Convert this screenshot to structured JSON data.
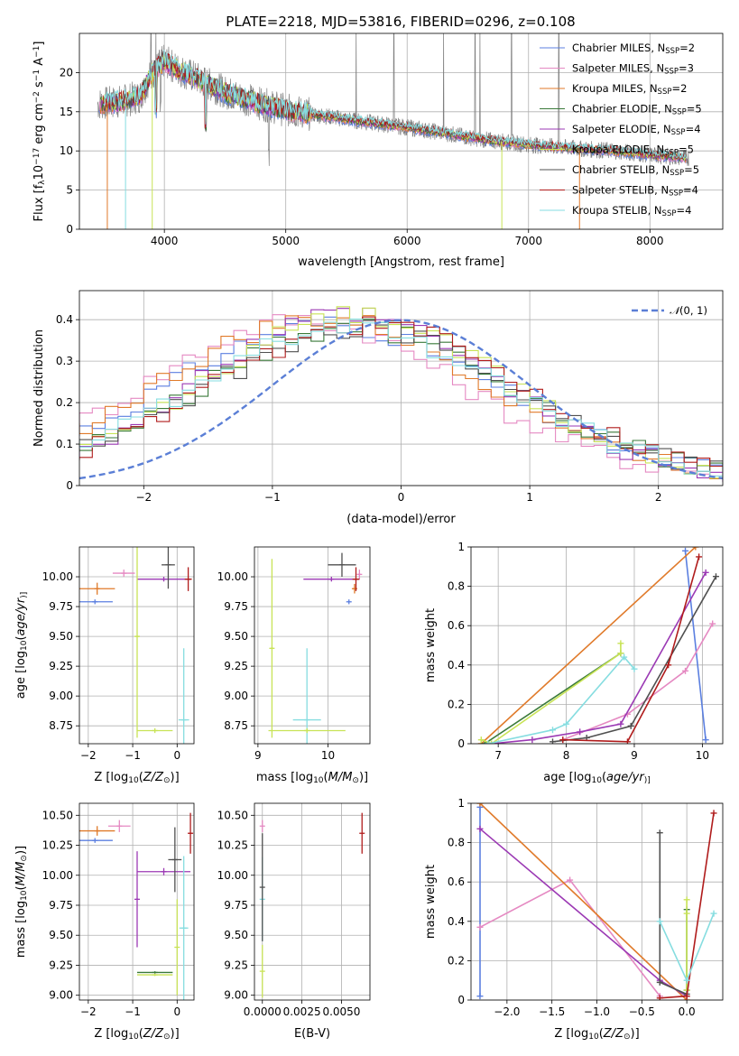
{
  "figure_title": "PLATE=2218, MJD=53816, FIBERID=0296, z=0.108",
  "colors": {
    "chabrier_miles": "#5b7fe0",
    "salpeter_miles": "#e589c2",
    "kroupa_miles": "#e07a2a",
    "chabrier_elodie": "#3a7a3a",
    "salpeter_elodie": "#9b39b4",
    "kroupa_elodie": "#c8e356",
    "chabrier_stelib": "#505050",
    "salpeter_stelib": "#b01c1c",
    "kroupa_stelib": "#86dde0",
    "data_gray": "#808080",
    "normal_curve": "#5b7fd6"
  },
  "legend_spectrum": [
    {
      "prefix": "Chabrier MILES, N",
      "sub": "SSP",
      "suffix": "=2",
      "color_key": "chabrier_miles"
    },
    {
      "prefix": "Salpeter MILES, N",
      "sub": "SSP",
      "suffix": "=3",
      "color_key": "salpeter_miles"
    },
    {
      "prefix": "Kroupa MILES, N",
      "sub": "SSP",
      "suffix": "=2",
      "color_key": "kroupa_miles"
    },
    {
      "prefix": "Chabrier ELODIE, N",
      "sub": "SSP",
      "suffix": "=5",
      "color_key": "chabrier_elodie"
    },
    {
      "prefix": "Salpeter ELODIE, N",
      "sub": "SSP",
      "suffix": "=4",
      "color_key": "salpeter_elodie"
    },
    {
      "prefix": "Kroupa ELODIE, N",
      "sub": "SSP",
      "suffix": "=5",
      "color_key": "kroupa_elodie"
    },
    {
      "prefix": "Chabrier STELIB, N",
      "sub": "SSP",
      "suffix": "=5",
      "color_key": "chabrier_stelib"
    },
    {
      "prefix": "Salpeter STELIB, N",
      "sub": "SSP",
      "suffix": "=4",
      "color_key": "salpeter_stelib"
    },
    {
      "prefix": "Kroupa STELIB, N",
      "sub": "SSP",
      "suffix": "=4",
      "color_key": "kroupa_stelib"
    }
  ],
  "chart_data": [
    {
      "id": "spectrum",
      "type": "line",
      "xlabel": "wavelength [Angstrom, rest frame]",
      "ylabel_parts": [
        "Flux [f",
        "λ",
        "10",
        "−17",
        " erg cm",
        "−2",
        " s",
        "−1",
        " A",
        "−1",
        "]"
      ],
      "xlim": [
        3300,
        8600
      ],
      "ylim": [
        0,
        25
      ],
      "xticks": [
        4000,
        5000,
        6000,
        7000,
        8000
      ],
      "yticks": [
        0,
        5,
        10,
        15,
        20
      ],
      "continuum": [
        [
          3450,
          16
        ],
        [
          3600,
          16.2
        ],
        [
          3700,
          16.5
        ],
        [
          3800,
          17
        ],
        [
          3900,
          20
        ],
        [
          4000,
          21.5
        ],
        [
          4100,
          20.5
        ],
        [
          4300,
          19
        ],
        [
          4500,
          17.5
        ],
        [
          4800,
          16
        ],
        [
          5000,
          15.2
        ],
        [
          5300,
          14.5
        ],
        [
          5600,
          13.8
        ],
        [
          6000,
          13
        ],
        [
          6300,
          12.3
        ],
        [
          6600,
          11.5
        ],
        [
          7000,
          10.8
        ],
        [
          7400,
          10.3
        ],
        [
          7700,
          10
        ],
        [
          8000,
          9.5
        ],
        [
          8300,
          9.1
        ]
      ],
      "model_dropouts_x": [
        3680,
        3900,
        3530,
        6780,
        7420
      ],
      "sky_spikes_x": [
        3890,
        3930,
        5580,
        5890,
        6300,
        6560,
        6600,
        6860,
        7250
      ]
    },
    {
      "id": "residual_hist",
      "type": "histogram",
      "xlabel": "(data-model)/error",
      "ylabel": "Normed distribution",
      "xlim": [
        -2.5,
        2.5
      ],
      "ylim": [
        0,
        0.47
      ],
      "xticks": [
        -2,
        -1,
        0,
        1,
        2
      ],
      "yticks": [
        0.0,
        0.1,
        0.2,
        0.3,
        0.4
      ],
      "bin_width": 0.1,
      "normal_label_parts": [
        "𝒩",
        "(0, 1)"
      ],
      "series": [
        {
          "color_key": "chabrier_miles",
          "mu": -0.55,
          "sigma": 1.05,
          "peak": 0.37
        },
        {
          "color_key": "salpeter_miles",
          "mu": -0.75,
          "sigma": 1.0,
          "peak": 0.38
        },
        {
          "color_key": "kroupa_miles",
          "mu": -0.6,
          "sigma": 1.05,
          "peak": 0.38
        },
        {
          "color_key": "chabrier_elodie",
          "mu": -0.35,
          "sigma": 1.0,
          "peak": 0.36
        },
        {
          "color_key": "salpeter_elodie",
          "mu": -0.4,
          "sigma": 0.95,
          "peak": 0.39
        },
        {
          "color_key": "kroupa_elodie",
          "mu": -0.35,
          "sigma": 0.95,
          "peak": 0.39
        },
        {
          "color_key": "chabrier_stelib",
          "mu": -0.3,
          "sigma": 1.0,
          "peak": 0.36
        },
        {
          "color_key": "salpeter_stelib",
          "mu": -0.25,
          "sigma": 1.0,
          "peak": 0.37
        },
        {
          "color_key": "kroupa_stelib",
          "mu": -0.4,
          "sigma": 1.0,
          "peak": 0.36
        }
      ]
    },
    {
      "id": "age_vs_Z",
      "type": "errorbar",
      "xlabel_parts": [
        "Z [log",
        "10",
        "(",
        "Z/Z",
        "⊙",
        ")]"
      ],
      "ylabel_parts": [
        "age  [log",
        "10",
        "(",
        "age/yr",
        ")]"
      ],
      "xlim": [
        -2.2,
        0.38
      ],
      "ylim": [
        8.6,
        10.25
      ],
      "xticks": [
        -2,
        -1,
        0
      ],
      "yticks": [
        8.75,
        9.0,
        9.25,
        9.5,
        9.75,
        10.0
      ],
      "ytick_labels": [
        "8.75",
        "9.00",
        "9.25",
        "9.50",
        "9.75",
        "10.00"
      ],
      "points": [
        {
          "color_key": "chabrier_miles",
          "x": -1.85,
          "y": 9.79,
          "xerr": 0.4,
          "yerr": 0.02
        },
        {
          "color_key": "kroupa_miles",
          "x": -1.8,
          "y": 9.9,
          "xerr": 0.4,
          "yerr": 0.05
        },
        {
          "color_key": "salpeter_miles",
          "x": -1.2,
          "y": 10.03,
          "xerr": 0.25,
          "yerr": 0.03
        },
        {
          "color_key": "salpeter_elodie",
          "x": -0.3,
          "y": 9.98,
          "xerr": 0.6,
          "yerr": 0.02
        },
        {
          "color_key": "kroupa_elodie",
          "x": -0.9,
          "y": 9.5,
          "xerr": 0.05,
          "yerr": 0.85
        },
        {
          "color_key": "chabrier_stelib",
          "x": -0.2,
          "y": 10.1,
          "xerr": 0.15,
          "yerr": 0.2
        },
        {
          "color_key": "salpeter_stelib",
          "x": 0.25,
          "y": 9.98,
          "xerr": 0.08,
          "yerr": 0.1
        },
        {
          "color_key": "kroupa_stelib",
          "x": 0.15,
          "y": 8.8,
          "xerr": 0.12,
          "yerr": 0.6
        },
        {
          "color_key": "kroupa_elodie",
          "x": -0.5,
          "y": 8.71,
          "xerr": 0.4,
          "yerr": 0.02
        }
      ]
    },
    {
      "id": "age_vs_mass",
      "type": "errorbar",
      "xlabel_parts": [
        "mass [log",
        "10",
        "(",
        "M/M",
        "⊙",
        ")]"
      ],
      "ylabel_parts": [],
      "xlim": [
        8.95,
        10.6
      ],
      "ylim": [
        8.6,
        10.25
      ],
      "xticks": [
        9,
        10
      ],
      "yticks": [
        8.75,
        9.0,
        9.25,
        9.5,
        9.75,
        10.0
      ],
      "ytick_labels": [
        "8.75",
        "9.00",
        "9.25",
        "9.50",
        "9.75",
        "10.00"
      ],
      "points": [
        {
          "color_key": "chabrier_miles",
          "x": 10.3,
          "y": 9.79,
          "xerr": 0.01,
          "yerr": 0.02
        },
        {
          "color_key": "kroupa_miles",
          "x": 10.38,
          "y": 9.9,
          "xerr": 0.02,
          "yerr": 0.04
        },
        {
          "color_key": "salpeter_miles",
          "x": 10.45,
          "y": 10.02,
          "xerr": 0.02,
          "yerr": 0.04
        },
        {
          "color_key": "salpeter_elodie",
          "x": 10.05,
          "y": 9.98,
          "xerr": 0.4,
          "yerr": 0.02
        },
        {
          "color_key": "kroupa_elodie",
          "x": 9.2,
          "y": 9.4,
          "xerr": 0.02,
          "yerr": 0.75
        },
        {
          "color_key": "chabrier_stelib",
          "x": 10.2,
          "y": 10.1,
          "xerr": 0.2,
          "yerr": 0.1
        },
        {
          "color_key": "salpeter_stelib",
          "x": 10.4,
          "y": 9.98,
          "xerr": 0.05,
          "yerr": 0.1
        },
        {
          "color_key": "kroupa_stelib",
          "x": 9.7,
          "y": 8.8,
          "xerr": 0.2,
          "yerr": 0.6
        },
        {
          "color_key": "kroupa_elodie",
          "x": 9.7,
          "y": 8.71,
          "xerr": 0.55,
          "yerr": 0.02
        }
      ]
    },
    {
      "id": "weight_vs_age",
      "type": "line",
      "xlabel_parts": [
        "age  [log",
        "10",
        "(",
        "age/yr",
        ")]"
      ],
      "ylabel": "mass weight",
      "xlim": [
        6.6,
        10.3
      ],
      "ylim": [
        0,
        1.0
      ],
      "xticks": [
        7,
        8,
        9,
        10
      ],
      "yticks": [
        0.0,
        0.2,
        0.4,
        0.6,
        0.8,
        1.0
      ],
      "series": [
        {
          "color_key": "chabrier_miles",
          "points": [
            [
              9.75,
              0.98
            ],
            [
              10.05,
              0.02
            ]
          ]
        },
        {
          "color_key": "salpeter_miles",
          "points": [
            [
              7.95,
              0.02
            ],
            [
              8.9,
              0.15
            ],
            [
              9.75,
              0.37
            ],
            [
              10.15,
              0.61
            ]
          ]
        },
        {
          "color_key": "kroupa_miles",
          "points": [
            [
              6.75,
              0.0
            ],
            [
              9.9,
              1.0
            ]
          ]
        },
        {
          "color_key": "chabrier_elodie",
          "points": [
            [
              6.8,
              0.0
            ],
            [
              8.8,
              0.46
            ]
          ]
        },
        {
          "color_key": "salpeter_elodie",
          "points": [
            [
              6.9,
              0.0
            ],
            [
              7.5,
              0.02
            ],
            [
              8.2,
              0.06
            ],
            [
              8.8,
              0.1
            ],
            [
              10.05,
              0.87
            ]
          ]
        },
        {
          "color_key": "kroupa_elodie",
          "points": [
            [
              6.75,
              0.02
            ],
            [
              6.9,
              0.0
            ],
            [
              8.8,
              0.46
            ],
            [
              8.8,
              0.51
            ]
          ]
        },
        {
          "color_key": "chabrier_stelib",
          "points": [
            [
              7.8,
              0.01
            ],
            [
              8.3,
              0.03
            ],
            [
              8.95,
              0.09
            ],
            [
              10.2,
              0.85
            ]
          ]
        },
        {
          "color_key": "salpeter_stelib",
          "points": [
            [
              7.95,
              0.02
            ],
            [
              8.9,
              0.01
            ],
            [
              9.5,
              0.4
            ],
            [
              9.95,
              0.95
            ]
          ]
        },
        {
          "color_key": "kroupa_stelib",
          "points": [
            [
              6.85,
              0.0
            ],
            [
              7.8,
              0.07
            ],
            [
              8.0,
              0.1
            ],
            [
              8.85,
              0.44
            ],
            [
              9.0,
              0.38
            ]
          ]
        }
      ]
    },
    {
      "id": "mass_vs_Z",
      "type": "errorbar",
      "xlabel_parts": [
        "Z [log",
        "10",
        "(",
        "Z/Z",
        "⊙",
        ")]"
      ],
      "ylabel_parts": [
        "mass [log",
        "10",
        "(",
        "M/M",
        "⊙",
        ")]"
      ],
      "xlim": [
        -2.2,
        0.38
      ],
      "ylim": [
        8.96,
        10.6
      ],
      "xticks": [
        -2,
        -1,
        0
      ],
      "yticks": [
        9.0,
        9.25,
        9.5,
        9.75,
        10.0,
        10.25,
        10.5
      ],
      "ytick_labels": [
        "9.00",
        "9.25",
        "9.50",
        "9.75",
        "10.00",
        "10.25",
        "10.50"
      ],
      "points": [
        {
          "color_key": "chabrier_miles",
          "x": -1.85,
          "y": 10.29,
          "xerr": 0.4,
          "yerr": 0.02
        },
        {
          "color_key": "kroupa_miles",
          "x": -1.8,
          "y": 10.37,
          "xerr": 0.4,
          "yerr": 0.04
        },
        {
          "color_key": "salpeter_miles",
          "x": -1.3,
          "y": 10.41,
          "xerr": 0.25,
          "yerr": 0.05
        },
        {
          "color_key": "salpeter_elodie",
          "x": -0.3,
          "y": 10.03,
          "xerr": 0.6,
          "yerr": 0.03
        },
        {
          "color_key": "salpeter_elodie",
          "x": -0.9,
          "y": 9.8,
          "xerr": 0.02,
          "yerr": 0.4
        },
        {
          "color_key": "chabrier_stelib",
          "x": -0.05,
          "y": 10.13,
          "xerr": 0.15,
          "yerr": 0.27
        },
        {
          "color_key": "salpeter_stelib",
          "x": 0.3,
          "y": 10.35,
          "xerr": 0.03,
          "yerr": 0.17
        },
        {
          "color_key": "kroupa_stelib",
          "x": 0.15,
          "y": 9.56,
          "xerr": 0.1,
          "yerr": 0.6
        },
        {
          "color_key": "chabrier_elodie",
          "x": -0.5,
          "y": 9.19,
          "xerr": 0.4,
          "yerr": 0.01
        },
        {
          "color_key": "kroupa_elodie",
          "x": -0.5,
          "y": 9.17,
          "xerr": 0.4,
          "yerr": 0.01
        },
        {
          "color_key": "kroupa_elodie",
          "x": 0.0,
          "y": 9.4,
          "xerr": 0.01,
          "yerr": 0.4
        }
      ]
    },
    {
      "id": "mass_vs_ebv",
      "type": "errorbar",
      "xlabel": "E(B-V)",
      "ylabel_parts": [],
      "xlim": [
        -0.0005,
        0.0068
      ],
      "ylim": [
        8.96,
        10.6
      ],
      "xticks": [
        0.0,
        0.0025,
        0.005
      ],
      "xtick_labels": [
        "0.0000",
        "0.0025",
        "0.0050"
      ],
      "yticks": [
        9.0,
        9.25,
        9.5,
        9.75,
        10.0,
        10.25,
        10.5
      ],
      "ytick_labels": [
        "9.00",
        "9.25",
        "9.50",
        "9.75",
        "10.00",
        "10.25",
        "10.50"
      ],
      "points": [
        {
          "color_key": "salpeter_miles",
          "x": 0.0,
          "y": 10.41,
          "xerr": 1e-05,
          "yerr": 0.05
        },
        {
          "color_key": "kroupa_stelib",
          "x": 0.0,
          "y": 9.8,
          "xerr": 1e-05,
          "yerr": 0.35
        },
        {
          "color_key": "chabrier_stelib",
          "x": 0.0,
          "y": 9.9,
          "xerr": 1e-05,
          "yerr": 0.45
        },
        {
          "color_key": "kroupa_elodie",
          "x": 0.0,
          "y": 9.2,
          "xerr": 1e-05,
          "yerr": 0.22
        },
        {
          "color_key": "salpeter_stelib",
          "x": 0.0063,
          "y": 10.35,
          "xerr": 1e-05,
          "yerr": 0.17
        }
      ]
    },
    {
      "id": "weight_vs_Z",
      "type": "line",
      "xlabel_parts": [
        "Z [log",
        "10",
        "(",
        "Z/Z",
        "⊙",
        ")]"
      ],
      "ylabel": "mass weight",
      "xlim": [
        -2.4,
        0.4
      ],
      "ylim": [
        0,
        1.0
      ],
      "xticks": [
        -2.0,
        -1.5,
        -1.0,
        -0.5,
        0.0
      ],
      "xtick_labels": [
        "−2.0",
        "−1.5",
        "−1.0",
        "−0.5",
        "0.0"
      ],
      "yticks": [
        0.0,
        0.2,
        0.4,
        0.6,
        0.8,
        1.0
      ],
      "series": [
        {
          "color_key": "chabrier_miles",
          "points": [
            [
              -2.3,
              0.02
            ],
            [
              -2.3,
              0.98
            ]
          ]
        },
        {
          "color_key": "salpeter_miles",
          "points": [
            [
              -2.3,
              0.37
            ],
            [
              -1.3,
              0.61
            ],
            [
              -0.3,
              0.02
            ]
          ]
        },
        {
          "color_key": "kroupa_miles",
          "points": [
            [
              -2.3,
              1.0
            ],
            [
              0.0,
              0.0
            ]
          ]
        },
        {
          "color_key": "chabrier_elodie",
          "points": [
            [
              0.0,
              0.46
            ],
            [
              0.0,
              0.05
            ]
          ]
        },
        {
          "color_key": "salpeter_elodie",
          "points": [
            [
              -2.3,
              0.87
            ],
            [
              -0.3,
              0.1
            ],
            [
              0.0,
              0.02
            ]
          ]
        },
        {
          "color_key": "kroupa_elodie",
          "points": [
            [
              0.0,
              0.51
            ],
            [
              0.0,
              0.44
            ],
            [
              0.0,
              0.05
            ]
          ]
        },
        {
          "color_key": "chabrier_stelib",
          "points": [
            [
              -0.3,
              0.85
            ],
            [
              -0.3,
              0.09
            ],
            [
              0.0,
              0.03
            ]
          ]
        },
        {
          "color_key": "salpeter_stelib",
          "points": [
            [
              -0.3,
              0.01
            ],
            [
              0.0,
              0.02
            ],
            [
              0.3,
              0.95
            ]
          ]
        },
        {
          "color_key": "kroupa_stelib",
          "points": [
            [
              -0.3,
              0.4
            ],
            [
              0.0,
              0.1
            ],
            [
              0.3,
              0.44
            ]
          ]
        }
      ]
    }
  ]
}
